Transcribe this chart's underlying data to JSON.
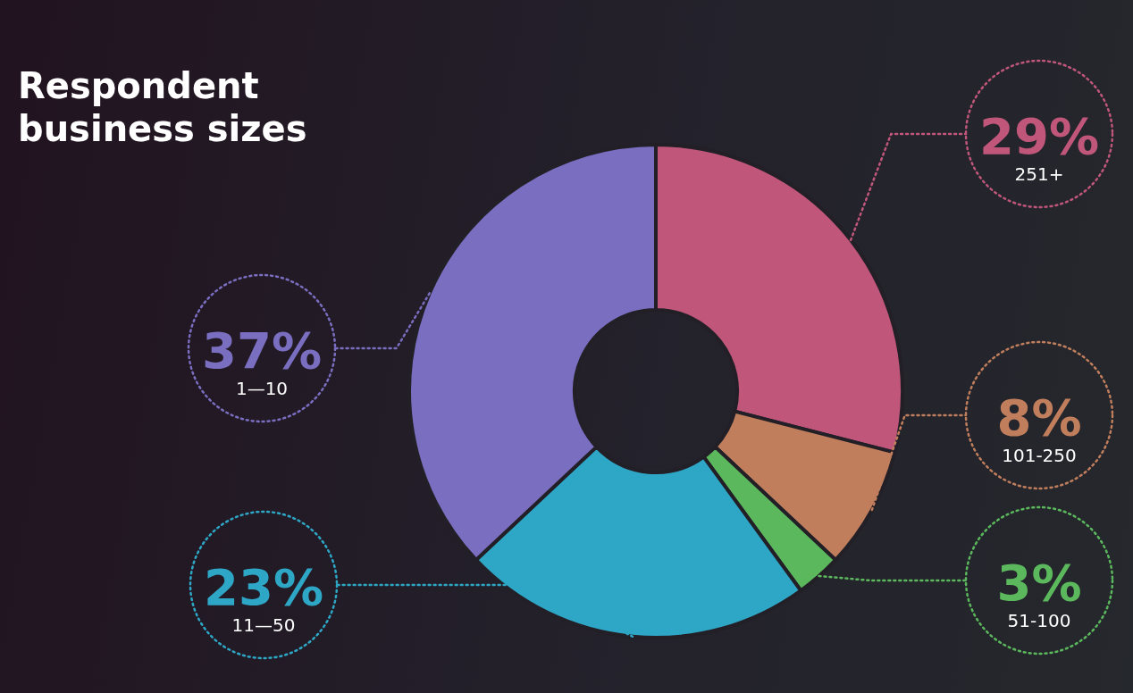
{
  "chart_data": {
    "type": "donut",
    "title": "Respondent business sizes",
    "categories": [
      "251+",
      "101-250",
      "51-100",
      "11—50",
      "1—10"
    ],
    "values": [
      29,
      8,
      3,
      23,
      37
    ],
    "value_labels": [
      "29%",
      "8%",
      "3%",
      "23%",
      "37%"
    ],
    "colors": [
      "#c0567a",
      "#c07e5c",
      "#5cb85c",
      "#2ea6c6",
      "#7a6ec0"
    ],
    "legend": false
  }
}
